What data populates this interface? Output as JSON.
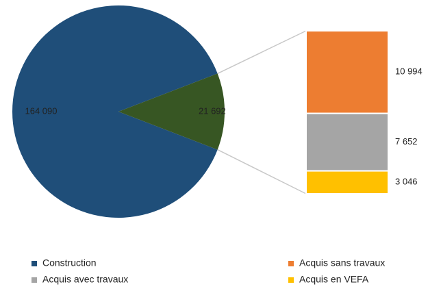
{
  "chart_data": {
    "type": "pie",
    "categories": [
      "Construction",
      null
    ],
    "values": [
      164090,
      21692
    ],
    "value_labels": [
      "164 090",
      "21 692"
    ],
    "colors": [
      "#1f4e79",
      "#375623"
    ],
    "breakdown": {
      "type": "bar",
      "categories": [
        "Acquis sans travaux",
        "Acquis avec travaux",
        "Acquis en VEFA"
      ],
      "values": [
        10994,
        7652,
        3046
      ],
      "value_labels": [
        "10 994",
        "7 652",
        "3 046"
      ],
      "colors": [
        "#ed7d31",
        "#a5a5a5",
        "#ffc000"
      ]
    }
  }
}
